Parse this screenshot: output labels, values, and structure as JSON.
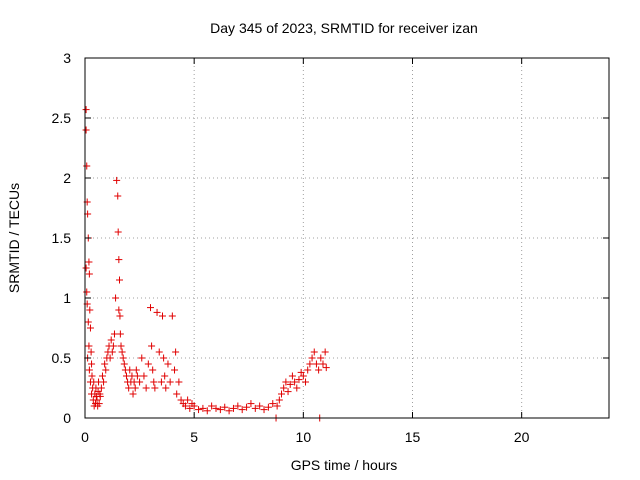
{
  "chart_data": {
    "type": "scatter",
    "title": "Day 345 of 2023, SRMTID for receiver izan",
    "xlabel": "GPS time / hours",
    "ylabel": "SRMTID / TECUs",
    "xlim": [
      0,
      24
    ],
    "ylim": [
      0,
      3
    ],
    "xticks": [
      "0",
      "5",
      "10",
      "15",
      "20"
    ],
    "yticks": [
      "0",
      "0.5",
      "1",
      "1.5",
      "2",
      "2.5",
      "3"
    ],
    "grid": true,
    "marker": "+",
    "color": "#e00000",
    "series": [
      {
        "name": "SRMTID",
        "x": [
          0.05,
          0.05,
          0.05,
          0.08,
          0.08,
          0.1,
          0.1,
          0.12,
          0.12,
          0.15,
          0.15,
          0.18,
          0.18,
          0.2,
          0.2,
          0.22,
          0.25,
          0.25,
          0.28,
          0.3,
          0.3,
          0.32,
          0.35,
          0.38,
          0.4,
          0.42,
          0.45,
          0.48,
          0.5,
          0.52,
          0.55,
          0.58,
          0.6,
          0.62,
          0.65,
          0.68,
          0.7,
          0.75,
          0.8,
          0.85,
          0.9,
          0.95,
          1.0,
          1.05,
          1.1,
          1.15,
          1.2,
          1.25,
          1.3,
          1.35,
          1.4,
          1.45,
          1.5,
          1.52,
          1.55,
          1.55,
          1.58,
          1.6,
          1.62,
          1.65,
          1.7,
          1.75,
          1.8,
          1.85,
          1.9,
          1.95,
          2.0,
          2.05,
          2.1,
          2.15,
          2.2,
          2.25,
          2.3,
          2.35,
          2.4,
          2.5,
          2.6,
          2.7,
          2.8,
          2.9,
          3.0,
          3.05,
          3.1,
          3.15,
          3.2,
          3.3,
          3.4,
          3.5,
          3.55,
          3.6,
          3.65,
          3.7,
          3.8,
          3.9,
          4.0,
          4.1,
          4.15,
          4.2,
          4.3,
          4.4,
          4.5,
          4.6,
          4.7,
          4.8,
          4.9,
          5.0,
          5.2,
          5.4,
          5.6,
          5.8,
          6.0,
          6.2,
          6.4,
          6.6,
          6.8,
          7.0,
          7.2,
          7.4,
          7.6,
          7.8,
          8.0,
          8.2,
          8.4,
          8.6,
          8.8,
          8.9,
          9.0,
          9.1,
          9.2,
          9.3,
          9.4,
          9.5,
          9.6,
          9.7,
          9.8,
          9.9,
          10.0,
          10.1,
          10.2,
          10.3,
          10.4,
          10.5,
          10.6,
          10.7,
          10.8,
          10.9,
          11.0,
          11.05,
          10.75,
          8.75
        ],
        "y": [
          2.57,
          2.4,
          1.25,
          2.1,
          1.05,
          1.8,
          0.95,
          1.7,
          0.5,
          1.5,
          0.8,
          1.3,
          0.6,
          1.2,
          0.4,
          0.9,
          0.75,
          0.3,
          0.55,
          0.45,
          0.2,
          0.35,
          0.25,
          0.15,
          0.3,
          0.1,
          0.2,
          0.12,
          0.25,
          0.18,
          0.15,
          0.1,
          0.22,
          0.3,
          0.12,
          0.2,
          0.18,
          0.25,
          0.35,
          0.3,
          0.45,
          0.4,
          0.5,
          0.55,
          0.6,
          0.5,
          0.65,
          0.55,
          0.6,
          0.7,
          1.0,
          1.98,
          1.85,
          1.55,
          0.9,
          1.32,
          1.15,
          0.85,
          0.7,
          0.6,
          0.55,
          0.5,
          0.45,
          0.4,
          0.35,
          0.3,
          0.25,
          0.4,
          0.3,
          0.35,
          0.2,
          0.3,
          0.25,
          0.4,
          0.35,
          0.3,
          0.5,
          0.35,
          0.25,
          0.45,
          0.92,
          0.6,
          0.4,
          0.3,
          0.25,
          0.88,
          0.55,
          0.3,
          0.85,
          0.5,
          0.35,
          0.25,
          0.45,
          0.3,
          0.85,
          0.4,
          0.55,
          0.2,
          0.3,
          0.15,
          0.12,
          0.1,
          0.15,
          0.08,
          0.12,
          0.1,
          0.07,
          0.08,
          0.06,
          0.1,
          0.08,
          0.07,
          0.09,
          0.06,
          0.08,
          0.1,
          0.07,
          0.09,
          0.12,
          0.08,
          0.1,
          0.07,
          0.09,
          0.12,
          0.1,
          0.15,
          0.2,
          0.25,
          0.3,
          0.22,
          0.28,
          0.35,
          0.3,
          0.25,
          0.32,
          0.38,
          0.35,
          0.3,
          0.4,
          0.45,
          0.5,
          0.55,
          0.45,
          0.4,
          0.5,
          0.45,
          0.55,
          0.42,
          0.0,
          0.0
        ]
      }
    ]
  }
}
